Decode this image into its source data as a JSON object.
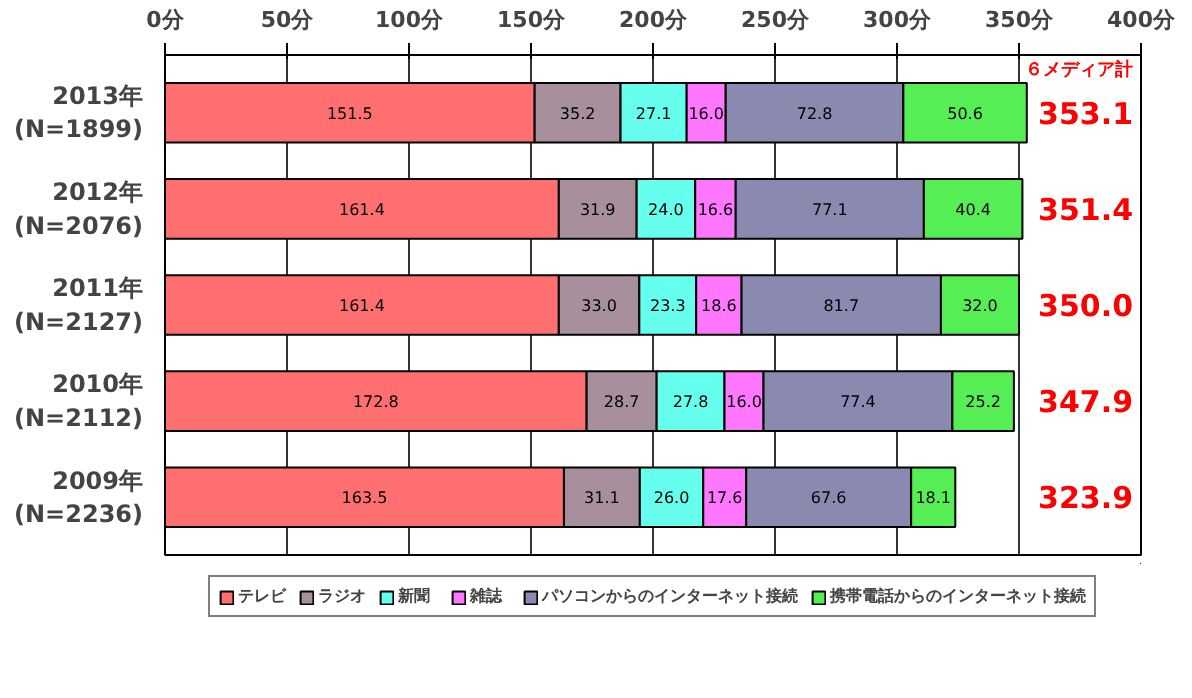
{
  "chart_data": {
    "type": "bar",
    "orientation": "horizontal",
    "stacked": true,
    "categories": [
      "2013年\n(N=1899)",
      "2012年\n(N=2076)",
      "2011年\n(N=2127)",
      "2010年\n(N=2112)",
      "2009年\n(N=2236)"
    ],
    "series": [
      {
        "name": "テレビ",
        "color": "#ff6f6f",
        "values": [
          151.5,
          161.4,
          161.4,
          172.8,
          163.5
        ],
        "value_labels": [
          "151.5",
          "161.4",
          "161.4",
          "172.8",
          "163.5"
        ]
      },
      {
        "name": "ラジオ",
        "color": "#a88f9c",
        "values": [
          35.2,
          31.9,
          33.0,
          28.7,
          31.1
        ],
        "value_labels": [
          "35.2",
          "31.9",
          "33.0",
          "28.7",
          "31.1"
        ]
      },
      {
        "name": "新聞",
        "color": "#66ffee",
        "values": [
          27.1,
          24.0,
          23.3,
          27.8,
          26.0
        ],
        "value_labels": [
          "27.1",
          "24.0",
          "23.3",
          "27.8",
          "26.0"
        ]
      },
      {
        "name": "雑誌",
        "color": "#ff77ff",
        "values": [
          16.0,
          16.6,
          18.6,
          16.0,
          17.6
        ],
        "value_labels": [
          "16.0",
          "16.6",
          "18.6",
          "16.0",
          "17.6"
        ]
      },
      {
        "name": "パソコンからのインターネット接続",
        "color": "#8a8ab0",
        "values": [
          72.8,
          77.1,
          81.7,
          77.4,
          67.6
        ],
        "value_labels": [
          "72.8",
          "77.1",
          "81.7",
          "77.4",
          "67.6"
        ]
      },
      {
        "name": "携帯電話からのインターネット接続",
        "color": "#55ee55",
        "values": [
          50.6,
          40.4,
          32.0,
          25.2,
          18.1
        ],
        "value_labels": [
          "50.6",
          "40.4",
          "32.0",
          "25.2",
          "18.1"
        ]
      }
    ],
    "xlim": [
      0,
      400
    ],
    "xticks": [
      {
        "value": 0,
        "label": "0分"
      },
      {
        "value": 50,
        "label": "50分"
      },
      {
        "value": 100,
        "label": "100分"
      },
      {
        "value": 150,
        "label": "150分"
      },
      {
        "value": 200,
        "label": "200分"
      },
      {
        "value": 250,
        "label": "250分"
      },
      {
        "value": 300,
        "label": "300分"
      },
      {
        "value": 350,
        "label": "350分"
      },
      {
        "value": 400,
        "label": "400分"
      }
    ],
    "totals": [
      "353.1",
      "351.4",
      "350.0",
      "347.9",
      "323.9"
    ],
    "annotations": [
      "６メディア計"
    ],
    "grid": "x",
    "legend": "bottom"
  }
}
